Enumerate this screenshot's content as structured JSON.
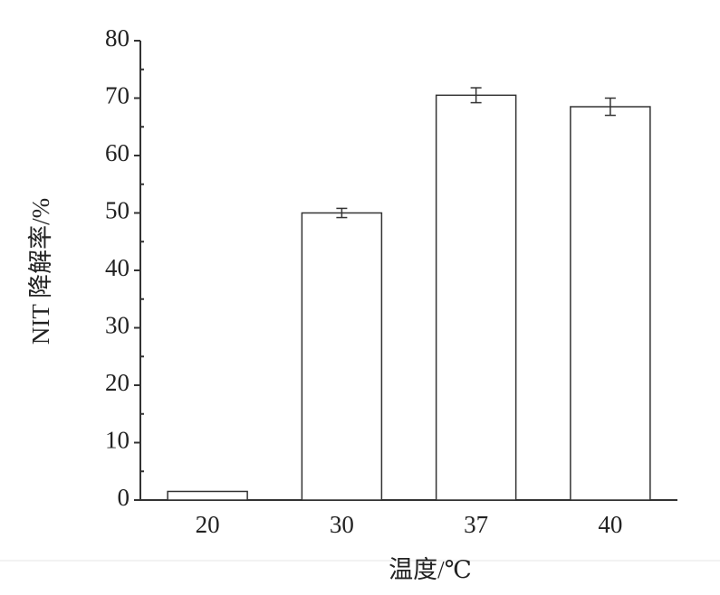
{
  "chart_data": {
    "type": "bar",
    "x_label": "温度/℃",
    "y_label": "NIT 降解率/%",
    "categories": [
      "20",
      "30",
      "37",
      "40"
    ],
    "values": [
      1.5,
      50,
      70.5,
      68.5
    ],
    "errors": [
      null,
      0.8,
      1.3,
      1.5
    ],
    "color": "#ffffff",
    "ylim": [
      0,
      80
    ],
    "yticks": [
      0,
      10,
      20,
      30,
      40,
      50,
      60,
      70,
      80
    ],
    "minor_yticks": [
      5,
      15,
      25,
      35,
      45,
      55,
      65,
      75
    ],
    "grid": false
  }
}
